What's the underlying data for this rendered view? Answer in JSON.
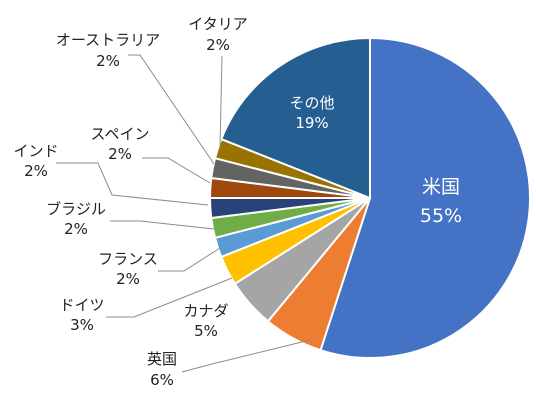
{
  "chart_data": {
    "type": "pie",
    "start_angle_deg": 0,
    "direction": "clockwise",
    "legend": "none",
    "slices": [
      {
        "label": "米国",
        "value": 55,
        "value_label": "55%",
        "color": "#4472C4"
      },
      {
        "label": "英国",
        "value": 6,
        "value_label": "6%",
        "color": "#ED7D31"
      },
      {
        "label": "カナダ",
        "value": 5,
        "value_label": "5%",
        "color": "#A5A5A5"
      },
      {
        "label": "ドイツ",
        "value": 3,
        "value_label": "3%",
        "color": "#FFC000"
      },
      {
        "label": "フランス",
        "value": 2,
        "value_label": "2%",
        "color": "#5B9BD5"
      },
      {
        "label": "ブラジル",
        "value": 2,
        "value_label": "2%",
        "color": "#70AD47"
      },
      {
        "label": "インド",
        "value": 2,
        "value_label": "2%",
        "color": "#264478"
      },
      {
        "label": "スペイン",
        "value": 2,
        "value_label": "2%",
        "color": "#9E480E"
      },
      {
        "label": "オーストラリア",
        "value": 2,
        "value_label": "2%",
        "color": "#636363"
      },
      {
        "label": "イタリア",
        "value": 2,
        "value_label": "2%",
        "color": "#997300"
      },
      {
        "label": "その他",
        "value": 19,
        "value_label": "19%",
        "color": "#255E91"
      }
    ]
  }
}
